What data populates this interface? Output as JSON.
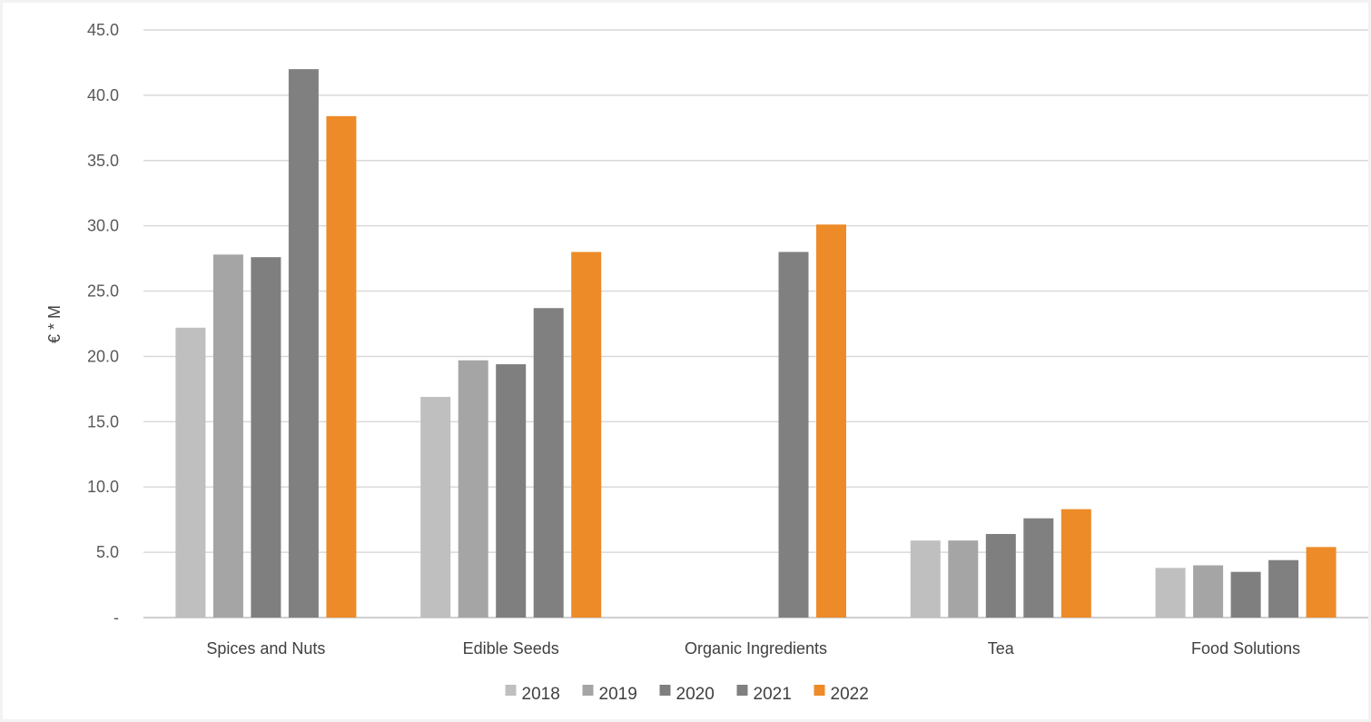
{
  "chart_data": {
    "type": "bar",
    "title": "",
    "xlabel": "",
    "ylabel": "€ * M",
    "ylim": [
      0,
      45
    ],
    "yticks": [
      0,
      5,
      10,
      15,
      20,
      25,
      30,
      35,
      40,
      45
    ],
    "ytick_labels": [
      "-",
      "5.0",
      "10.0",
      "15.0",
      "20.0",
      "25.0",
      "30.0",
      "35.0",
      "40.0",
      "45.0"
    ],
    "grid": true,
    "legend_position": "bottom-center",
    "categories": [
      "Spices and Nuts",
      "Edible Seeds",
      "Organic Ingredients",
      "Tea",
      "Food Solutions"
    ],
    "series": [
      {
        "name": "2018",
        "color": "#bfbfbf",
        "values": [
          22.2,
          16.9,
          null,
          5.9,
          3.8
        ]
      },
      {
        "name": "2019",
        "color": "#a5a5a5",
        "values": [
          27.8,
          19.7,
          null,
          5.9,
          4.0
        ]
      },
      {
        "name": "2020",
        "color": "#7f7f7f",
        "values": [
          27.6,
          19.4,
          null,
          6.4,
          3.5
        ]
      },
      {
        "name": "2021",
        "color": "#808080",
        "values": [
          42.0,
          23.7,
          28.0,
          7.6,
          4.4
        ]
      },
      {
        "name": "2022",
        "color": "#ed8b28",
        "values": [
          38.4,
          28.0,
          30.1,
          8.3,
          5.4
        ]
      }
    ]
  }
}
